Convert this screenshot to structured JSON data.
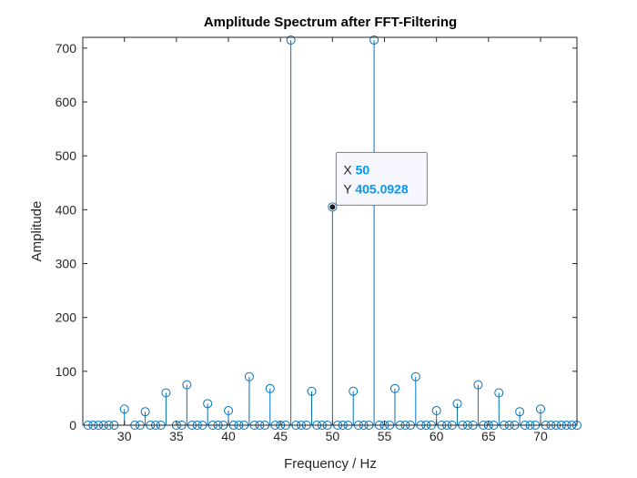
{
  "chart_data": {
    "type": "stem",
    "title": "Amplitude Spectrum after FFT-Filtering",
    "xlabel": "Frequency / Hz",
    "ylabel": "Amplitude",
    "xlim": [
      26,
      73.5
    ],
    "ylim": [
      0,
      720
    ],
    "xticks": [
      "30",
      "35",
      "40",
      "45",
      "50",
      "55",
      "60",
      "65",
      "70"
    ],
    "yticks": [
      "0",
      "100",
      "200",
      "300",
      "400",
      "500",
      "600",
      "700"
    ],
    "grid": false,
    "legend": "none",
    "color": "#0072BD",
    "points": [
      {
        "x": 26.5,
        "y": 0
      },
      {
        "x": 27,
        "y": 0
      },
      {
        "x": 27.5,
        "y": 0
      },
      {
        "x": 28,
        "y": 0
      },
      {
        "x": 28.5,
        "y": 0
      },
      {
        "x": 29,
        "y": 0
      },
      {
        "x": 30,
        "y": 30
      },
      {
        "x": 31,
        "y": 0
      },
      {
        "x": 31.5,
        "y": 0
      },
      {
        "x": 32,
        "y": 25
      },
      {
        "x": 32.5,
        "y": 0
      },
      {
        "x": 33,
        "y": 0
      },
      {
        "x": 33.5,
        "y": 0
      },
      {
        "x": 34,
        "y": 60
      },
      {
        "x": 35,
        "y": 0
      },
      {
        "x": 35.5,
        "y": 0
      },
      {
        "x": 36,
        "y": 75
      },
      {
        "x": 36.5,
        "y": 0
      },
      {
        "x": 37,
        "y": 0
      },
      {
        "x": 37.5,
        "y": 0
      },
      {
        "x": 38,
        "y": 40
      },
      {
        "x": 38.5,
        "y": 0
      },
      {
        "x": 39,
        "y": 0
      },
      {
        "x": 39.5,
        "y": 0
      },
      {
        "x": 40,
        "y": 27
      },
      {
        "x": 40.5,
        "y": 0
      },
      {
        "x": 41,
        "y": 0
      },
      {
        "x": 41.5,
        "y": 0
      },
      {
        "x": 42,
        "y": 90
      },
      {
        "x": 42.5,
        "y": 0
      },
      {
        "x": 43,
        "y": 0
      },
      {
        "x": 43.5,
        "y": 0
      },
      {
        "x": 44,
        "y": 68
      },
      {
        "x": 44.5,
        "y": 0
      },
      {
        "x": 45,
        "y": 0
      },
      {
        "x": 45.5,
        "y": 0
      },
      {
        "x": 46,
        "y": 715
      },
      {
        "x": 46.5,
        "y": 0
      },
      {
        "x": 47,
        "y": 0
      },
      {
        "x": 47.5,
        "y": 0
      },
      {
        "x": 48,
        "y": 63
      },
      {
        "x": 48.5,
        "y": 0
      },
      {
        "x": 49,
        "y": 0
      },
      {
        "x": 49.5,
        "y": 0
      },
      {
        "x": 50,
        "y": 405.0928
      },
      {
        "x": 50.5,
        "y": 0
      },
      {
        "x": 51,
        "y": 0
      },
      {
        "x": 51.5,
        "y": 0
      },
      {
        "x": 52,
        "y": 63
      },
      {
        "x": 52.5,
        "y": 0
      },
      {
        "x": 53,
        "y": 0
      },
      {
        "x": 53.5,
        "y": 0
      },
      {
        "x": 54,
        "y": 715
      },
      {
        "x": 54.5,
        "y": 0
      },
      {
        "x": 55,
        "y": 0
      },
      {
        "x": 55.5,
        "y": 0
      },
      {
        "x": 56,
        "y": 68
      },
      {
        "x": 56.5,
        "y": 0
      },
      {
        "x": 57,
        "y": 0
      },
      {
        "x": 57.5,
        "y": 0
      },
      {
        "x": 58,
        "y": 90
      },
      {
        "x": 58.5,
        "y": 0
      },
      {
        "x": 59,
        "y": 0
      },
      {
        "x": 59.5,
        "y": 0
      },
      {
        "x": 60,
        "y": 27
      },
      {
        "x": 60.5,
        "y": 0
      },
      {
        "x": 61,
        "y": 0
      },
      {
        "x": 61.5,
        "y": 0
      },
      {
        "x": 62,
        "y": 40
      },
      {
        "x": 62.5,
        "y": 0
      },
      {
        "x": 63,
        "y": 0
      },
      {
        "x": 63.5,
        "y": 0
      },
      {
        "x": 64,
        "y": 75
      },
      {
        "x": 64.5,
        "y": 0
      },
      {
        "x": 65,
        "y": 0
      },
      {
        "x": 65.5,
        "y": 0
      },
      {
        "x": 66,
        "y": 60
      },
      {
        "x": 66.5,
        "y": 0
      },
      {
        "x": 67,
        "y": 0
      },
      {
        "x": 67.5,
        "y": 0
      },
      {
        "x": 68,
        "y": 25
      },
      {
        "x": 68.5,
        "y": 0
      },
      {
        "x": 69,
        "y": 0
      },
      {
        "x": 69.5,
        "y": 0
      },
      {
        "x": 70,
        "y": 30
      },
      {
        "x": 70.5,
        "y": 0
      },
      {
        "x": 71,
        "y": 0
      },
      {
        "x": 71.5,
        "y": 0
      },
      {
        "x": 72,
        "y": 0
      },
      {
        "x": 72.5,
        "y": 0
      },
      {
        "x": 73,
        "y": 0
      },
      {
        "x": 73.5,
        "y": 0
      }
    ],
    "datatip": {
      "x_label": "X",
      "y_label": "Y",
      "x_value": "50",
      "y_value": "405.0928",
      "point": {
        "x": 50,
        "y": 405.0928
      }
    }
  }
}
